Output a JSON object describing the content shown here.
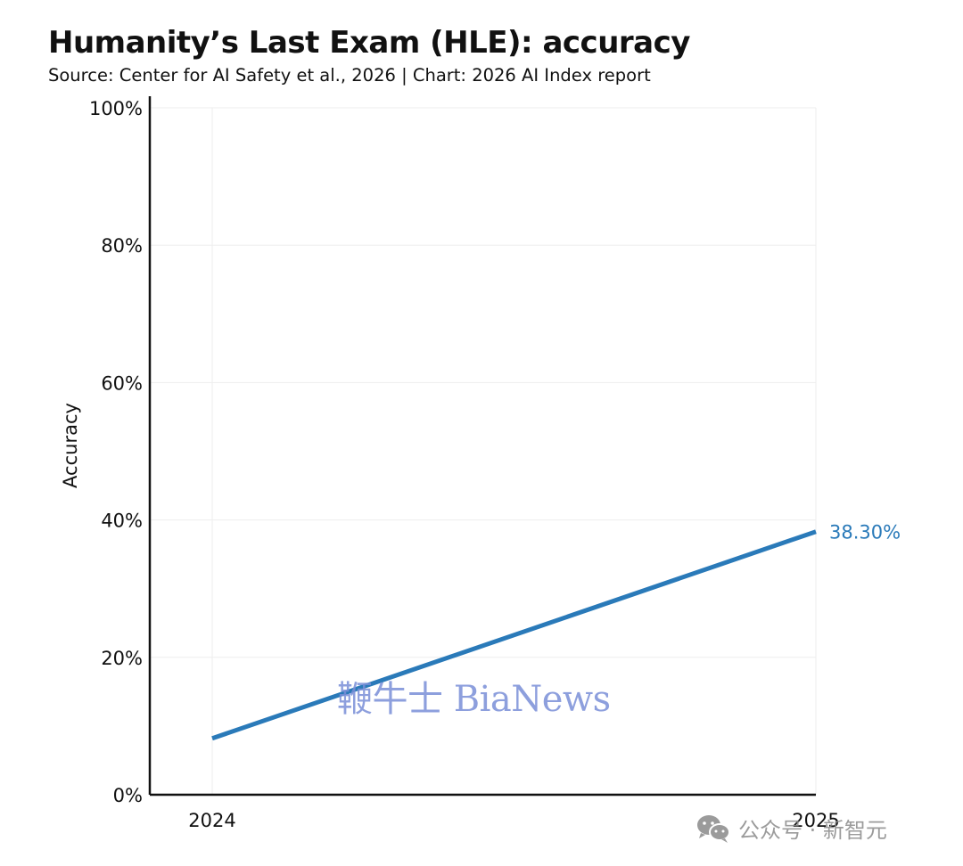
{
  "header": {
    "title": "Humanity’s Last Exam (HLE): accuracy",
    "subtitle": "Source: Center for AI Safety et al., 2026 | Chart: 2026 AI Index report"
  },
  "chart_data": {
    "type": "line",
    "title": "Humanity’s Last Exam (HLE): accuracy",
    "subtitle": "Source: Center for AI Safety et al., 2026 | Chart: 2026 AI Index report",
    "xlabel": "",
    "ylabel": "Accuracy",
    "x": [
      "2024",
      "2025"
    ],
    "y_ticks": [
      "0%",
      "20%",
      "40%",
      "60%",
      "80%",
      "100%"
    ],
    "ylim": [
      0,
      100
    ],
    "grid": true,
    "series": [
      {
        "values": [
          8.2,
          38.3
        ],
        "color": "#2a7ab9",
        "end_label": "38.30%"
      }
    ]
  },
  "watermarks": {
    "bianews": "鞭牛士 BiaNews",
    "wechat": "公众号 · 新智元"
  },
  "colors": {
    "line": "#2a7ab9",
    "grid": "#eeeeee",
    "axis": "#111111"
  }
}
